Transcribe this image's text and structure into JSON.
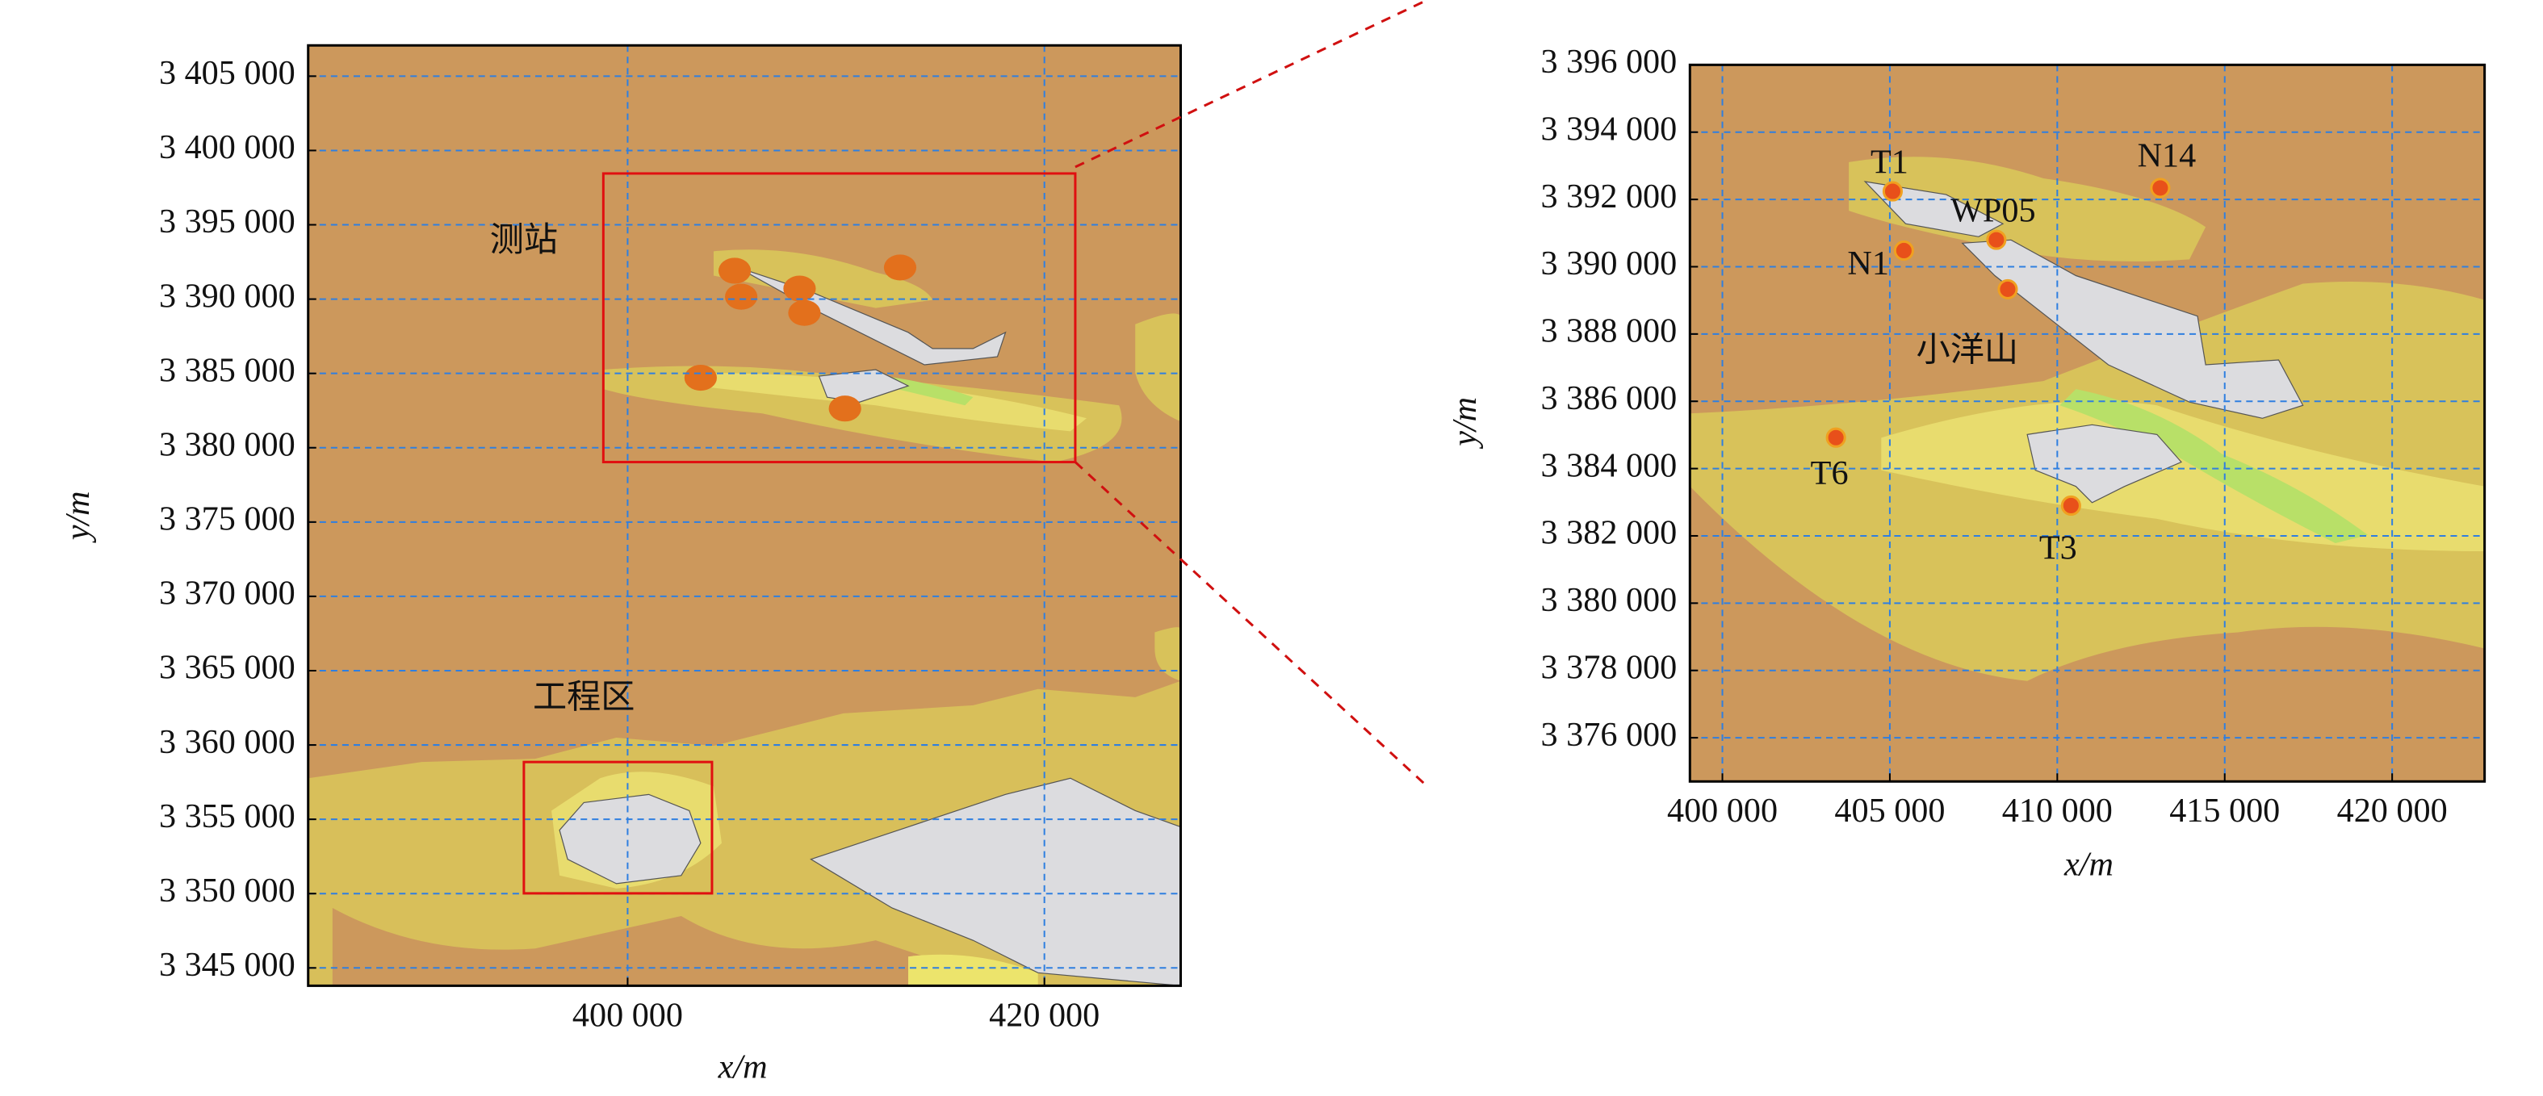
{
  "left_map": {
    "xlim": [
      384670,
      426540
    ],
    "ylim": [
      3343800,
      3407070
    ],
    "xticks": [
      {
        "value": 400000,
        "label": "400 000"
      },
      {
        "value": 420000,
        "label": "420 000"
      }
    ],
    "yticks": [
      {
        "value": 3345000,
        "label": "3 345 000"
      },
      {
        "value": 3350000,
        "label": "3 350 000"
      },
      {
        "value": 3355000,
        "label": "3 355 000"
      },
      {
        "value": 3360000,
        "label": "3 360 000"
      },
      {
        "value": 3365000,
        "label": "3 365 000"
      },
      {
        "value": 3370000,
        "label": "3 370 000"
      },
      {
        "value": 3375000,
        "label": "3 375 000"
      },
      {
        "value": 3380000,
        "label": "3 380 000"
      },
      {
        "value": 3385000,
        "label": "3 385 000"
      },
      {
        "value": 3390000,
        "label": "3 390 000"
      },
      {
        "value": 3395000,
        "label": "3 395 000"
      },
      {
        "value": 3400000,
        "label": "3 400 000"
      },
      {
        "value": 3405000,
        "label": "3 405 000"
      }
    ],
    "xlabel": "x/m",
    "ylabel": "y/m",
    "annotations": [
      "测站",
      "工程区"
    ]
  },
  "right_map": {
    "xlim": [
      399030,
      422760
    ],
    "ylim": [
      3374700,
      3396000
    ],
    "xticks": [
      {
        "value": 400000,
        "label": "400 000"
      },
      {
        "value": 405000,
        "label": "405 000"
      },
      {
        "value": 410000,
        "label": "410 000"
      },
      {
        "value": 415000,
        "label": "415 000"
      },
      {
        "value": 420000,
        "label": "420 000"
      }
    ],
    "yticks": [
      {
        "value": 3376000,
        "label": "3 376 000"
      },
      {
        "value": 3378000,
        "label": "3 378 000"
      },
      {
        "value": 3380000,
        "label": "3 380 000"
      },
      {
        "value": 3382000,
        "label": "3 382 000"
      },
      {
        "value": 3384000,
        "label": "3 384 000"
      },
      {
        "value": 3386000,
        "label": "3 386 000"
      },
      {
        "value": 3388000,
        "label": "3 388 000"
      },
      {
        "value": 3390000,
        "label": "3 390 000"
      },
      {
        "value": 3392000,
        "label": "3 392 000"
      },
      {
        "value": 3394000,
        "label": "3 394 000"
      },
      {
        "value": 3396000,
        "label": "3 396 000"
      }
    ],
    "xlabel": "x/m",
    "ylabel": "y/m",
    "annotations": [
      "小洋山"
    ],
    "stations": {
      "names": [
        "T1",
        "N14",
        "WP05",
        "N1",
        null,
        "T6",
        "T3"
      ],
      "x": [
        405085,
        413075,
        408180,
        405420,
        408520,
        403390,
        410410
      ],
      "y": [
        3392240,
        3392340,
        3390800,
        3390480,
        3389330,
        3384920,
        3382900
      ]
    }
  }
}
